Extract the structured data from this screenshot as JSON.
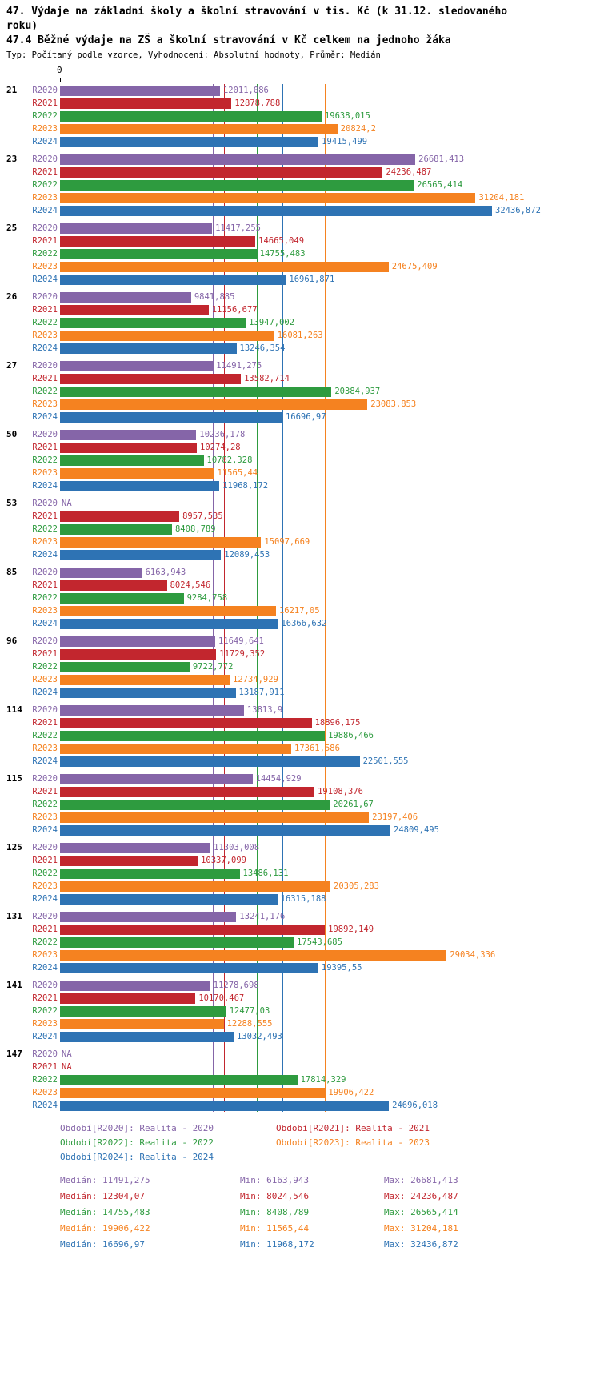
{
  "chart_data": {
    "type": "bar",
    "orientation": "horizontal",
    "title": "47. Výdaje na základní školy a školní stravování v tis. Kč (k 31.12. sledovaného roku)",
    "subtitle": "47.4 Běžné výdaje na ZŠ a školní stravování v Kč celkem na jednoho žáka",
    "meta": "Typ: Počítaný podle vzorce, Vyhodnocení: Absolutní hodnoty, Průměr: Medián",
    "axis": {
      "origin_label": "0",
      "xmin": 0,
      "xmax": 32436.872
    },
    "value_format": "czech-decimal-comma",
    "na_label": "NA",
    "stats_labels": {
      "median": "Medián",
      "min": "Min",
      "max": "Max"
    },
    "series": [
      {
        "id": "R2020",
        "color": "#8565A8",
        "legend": "Období[R2020]: Realita - 2020",
        "median": "11491,275",
        "min": "6163,943",
        "max": "26681,413"
      },
      {
        "id": "R2021",
        "color": "#C2262E",
        "legend": "Období[R2021]: Realita - 2021",
        "median": "12304,07",
        "min": "8024,546",
        "max": "24236,487"
      },
      {
        "id": "R2022",
        "color": "#2E9B3F",
        "legend": "Období[R2022]: Realita - 2022",
        "median": "14755,483",
        "min": "8408,789",
        "max": "26565,414"
      },
      {
        "id": "R2023",
        "color": "#F58220",
        "legend": "Období[R2023]: Realita - 2023",
        "median": "19906,422",
        "min": "11565,44",
        "max": "31204,181"
      },
      {
        "id": "R2024",
        "color": "#2E73B4",
        "legend": "Období[R2024]: Realita - 2024",
        "median": "16696,97",
        "min": "11968,172",
        "max": "32436,872"
      }
    ],
    "groups": [
      {
        "label": "21",
        "values": [
          "12011,086",
          "12878,788",
          "19638,015",
          "20824,2",
          "19415,499"
        ]
      },
      {
        "label": "23",
        "values": [
          "26681,413",
          "24236,487",
          "26565,414",
          "31204,181",
          "32436,872"
        ]
      },
      {
        "label": "25",
        "values": [
          "11417,255",
          "14665,049",
          "14755,483",
          "24675,409",
          "16961,871"
        ]
      },
      {
        "label": "26",
        "values": [
          "9841,885",
          "11156,677",
          "13947,002",
          "16081,263",
          "13246,354"
        ]
      },
      {
        "label": "27",
        "values": [
          "11491,275",
          "13582,714",
          "20384,937",
          "23083,853",
          "16696,97"
        ]
      },
      {
        "label": "50",
        "values": [
          "10236,178",
          "10274,28",
          "10782,328",
          "11565,44",
          "11968,172"
        ]
      },
      {
        "label": "53",
        "values": [
          "NA",
          "8957,535",
          "8408,789",
          "15097,669",
          "12089,453"
        ]
      },
      {
        "label": "85",
        "values": [
          "6163,943",
          "8024,546",
          "9284,758",
          "16217,05",
          "16366,632"
        ]
      },
      {
        "label": "96",
        "values": [
          "11649,641",
          "11729,352",
          "9722,772",
          "12734,929",
          "13187,911"
        ]
      },
      {
        "label": "114",
        "values": [
          "13813,9",
          "18896,175",
          "19886,466",
          "17361,586",
          "22501,555"
        ]
      },
      {
        "label": "115",
        "values": [
          "14454,929",
          "19108,376",
          "20261,67",
          "23197,406",
          "24809,495"
        ]
      },
      {
        "label": "125",
        "values": [
          "11303,008",
          "10337,099",
          "13486,131",
          "20305,283",
          "16315,188"
        ]
      },
      {
        "label": "131",
        "values": [
          "13241,176",
          "19892,149",
          "17543,685",
          "29034,336",
          "19395,55"
        ]
      },
      {
        "label": "141",
        "values": [
          "11278,698",
          "10170,467",
          "12477,03",
          "12288,555",
          "13032,493"
        ]
      },
      {
        "label": "147",
        "values": [
          "NA",
          "NA",
          "17814,329",
          "19906,422",
          "24696,018"
        ]
      }
    ]
  }
}
